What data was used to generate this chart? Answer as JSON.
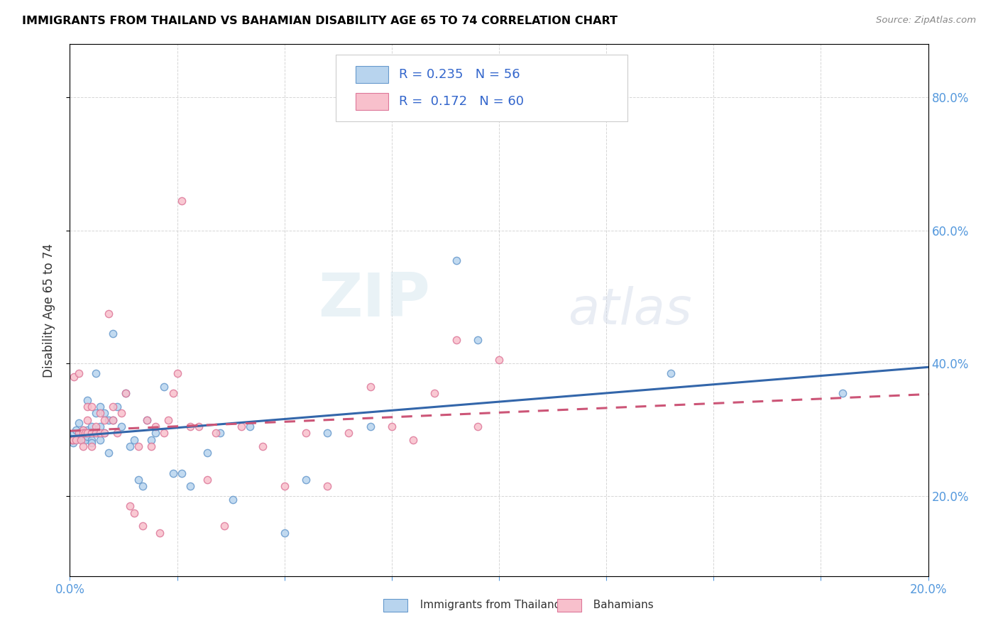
{
  "title": "IMMIGRANTS FROM THAILAND VS BAHAMIAN DISABILITY AGE 65 TO 74 CORRELATION CHART",
  "source": "Source: ZipAtlas.com",
  "ylabel": "Disability Age 65 to 74",
  "xmin": 0.0,
  "xmax": 0.2,
  "ymin": 0.08,
  "ymax": 0.88,
  "yticks": [
    0.2,
    0.4,
    0.6,
    0.8
  ],
  "xticks_count": 9,
  "series1_label": "Immigrants from Thailand",
  "series1_R": 0.235,
  "series1_N": 56,
  "series1_face_color": "#b8d4ee",
  "series1_edge_color": "#6699cc",
  "series1_line_color": "#3366aa",
  "series2_label": "Bahamians",
  "series2_R": 0.172,
  "series2_N": 60,
  "series2_face_color": "#f8c0cc",
  "series2_edge_color": "#dd7799",
  "series2_line_color": "#cc5577",
  "watermark_zip": "ZIP",
  "watermark_atlas": "atlas",
  "background_color": "#ffffff",
  "grid_color": "#cccccc",
  "axis_label_color": "#5599dd",
  "title_color": "#000000",
  "legend_text_color": "#3366cc",
  "series1_x": [
    0.0008,
    0.001,
    0.0015,
    0.002,
    0.002,
    0.0025,
    0.003,
    0.003,
    0.003,
    0.0035,
    0.004,
    0.004,
    0.004,
    0.004,
    0.005,
    0.005,
    0.005,
    0.005,
    0.006,
    0.006,
    0.006,
    0.007,
    0.007,
    0.007,
    0.008,
    0.008,
    0.009,
    0.009,
    0.01,
    0.01,
    0.011,
    0.012,
    0.013,
    0.014,
    0.015,
    0.016,
    0.017,
    0.018,
    0.019,
    0.02,
    0.022,
    0.024,
    0.026,
    0.028,
    0.032,
    0.035,
    0.038,
    0.042,
    0.05,
    0.055,
    0.06,
    0.07,
    0.09,
    0.095,
    0.14,
    0.18
  ],
  "series1_y": [
    0.28,
    0.295,
    0.3,
    0.29,
    0.31,
    0.295,
    0.3,
    0.285,
    0.295,
    0.285,
    0.3,
    0.295,
    0.345,
    0.29,
    0.305,
    0.295,
    0.285,
    0.28,
    0.325,
    0.385,
    0.295,
    0.285,
    0.305,
    0.335,
    0.295,
    0.325,
    0.315,
    0.265,
    0.445,
    0.315,
    0.335,
    0.305,
    0.355,
    0.275,
    0.285,
    0.225,
    0.215,
    0.315,
    0.285,
    0.295,
    0.365,
    0.235,
    0.235,
    0.215,
    0.265,
    0.295,
    0.195,
    0.305,
    0.145,
    0.225,
    0.295,
    0.305,
    0.555,
    0.435,
    0.385,
    0.355
  ],
  "series2_x": [
    0.0005,
    0.0008,
    0.001,
    0.0015,
    0.002,
    0.002,
    0.0025,
    0.003,
    0.003,
    0.003,
    0.0035,
    0.004,
    0.004,
    0.004,
    0.005,
    0.005,
    0.005,
    0.006,
    0.006,
    0.007,
    0.007,
    0.008,
    0.008,
    0.009,
    0.01,
    0.01,
    0.011,
    0.012,
    0.013,
    0.014,
    0.015,
    0.016,
    0.017,
    0.018,
    0.019,
    0.02,
    0.021,
    0.022,
    0.023,
    0.024,
    0.025,
    0.026,
    0.028,
    0.03,
    0.032,
    0.034,
    0.036,
    0.04,
    0.045,
    0.05,
    0.055,
    0.06,
    0.065,
    0.07,
    0.075,
    0.08,
    0.085,
    0.09,
    0.095,
    0.1
  ],
  "series2_y": [
    0.285,
    0.285,
    0.38,
    0.285,
    0.295,
    0.385,
    0.285,
    0.3,
    0.295,
    0.275,
    0.295,
    0.315,
    0.295,
    0.335,
    0.295,
    0.335,
    0.275,
    0.295,
    0.305,
    0.295,
    0.325,
    0.295,
    0.315,
    0.475,
    0.315,
    0.335,
    0.295,
    0.325,
    0.355,
    0.185,
    0.175,
    0.275,
    0.155,
    0.315,
    0.275,
    0.305,
    0.145,
    0.295,
    0.315,
    0.355,
    0.385,
    0.645,
    0.305,
    0.305,
    0.225,
    0.295,
    0.155,
    0.305,
    0.275,
    0.215,
    0.295,
    0.215,
    0.295,
    0.365,
    0.305,
    0.285,
    0.355,
    0.435,
    0.305,
    0.405
  ]
}
